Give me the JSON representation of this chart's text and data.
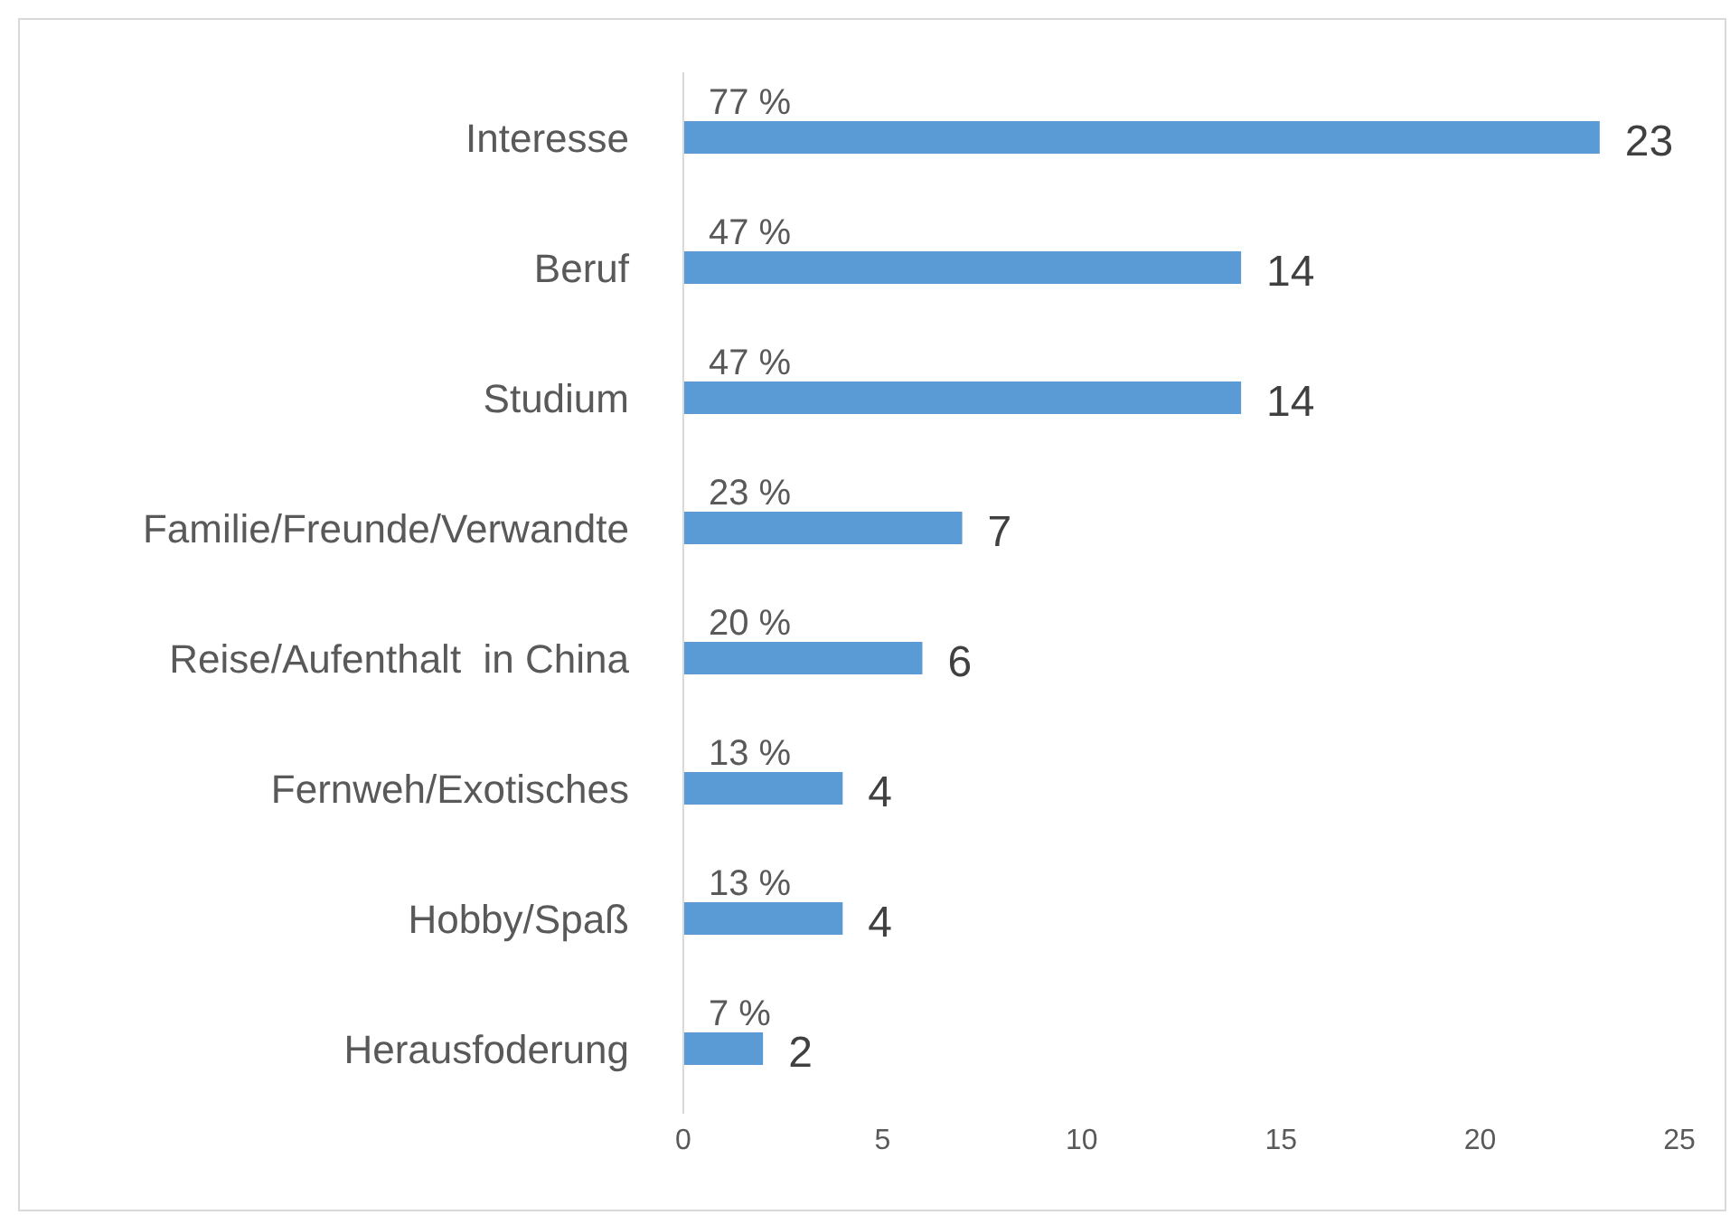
{
  "chart_data": {
    "type": "bar",
    "orientation": "horizontal",
    "categories": [
      "Interesse",
      "Beruf",
      "Studium",
      "Familie/Freunde/Verwandte",
      "Reise/Aufenthalt  in China",
      "Fernweh/Exotisches",
      "Hobby/Spaß",
      "Herausfoderung"
    ],
    "values": [
      23,
      14,
      14,
      7,
      6,
      4,
      4,
      2
    ],
    "color": "#5b9bd5",
    "data_labels": true,
    "xlim": [
      0,
      25
    ],
    "xticks": [
      0,
      5,
      10,
      15,
      20,
      25
    ],
    "grid": false,
    "annotations": [
      "77 %",
      "47 %",
      "47 %",
      "23 %",
      "20 %",
      "13 %",
      "13 %",
      "7 %"
    ]
  }
}
